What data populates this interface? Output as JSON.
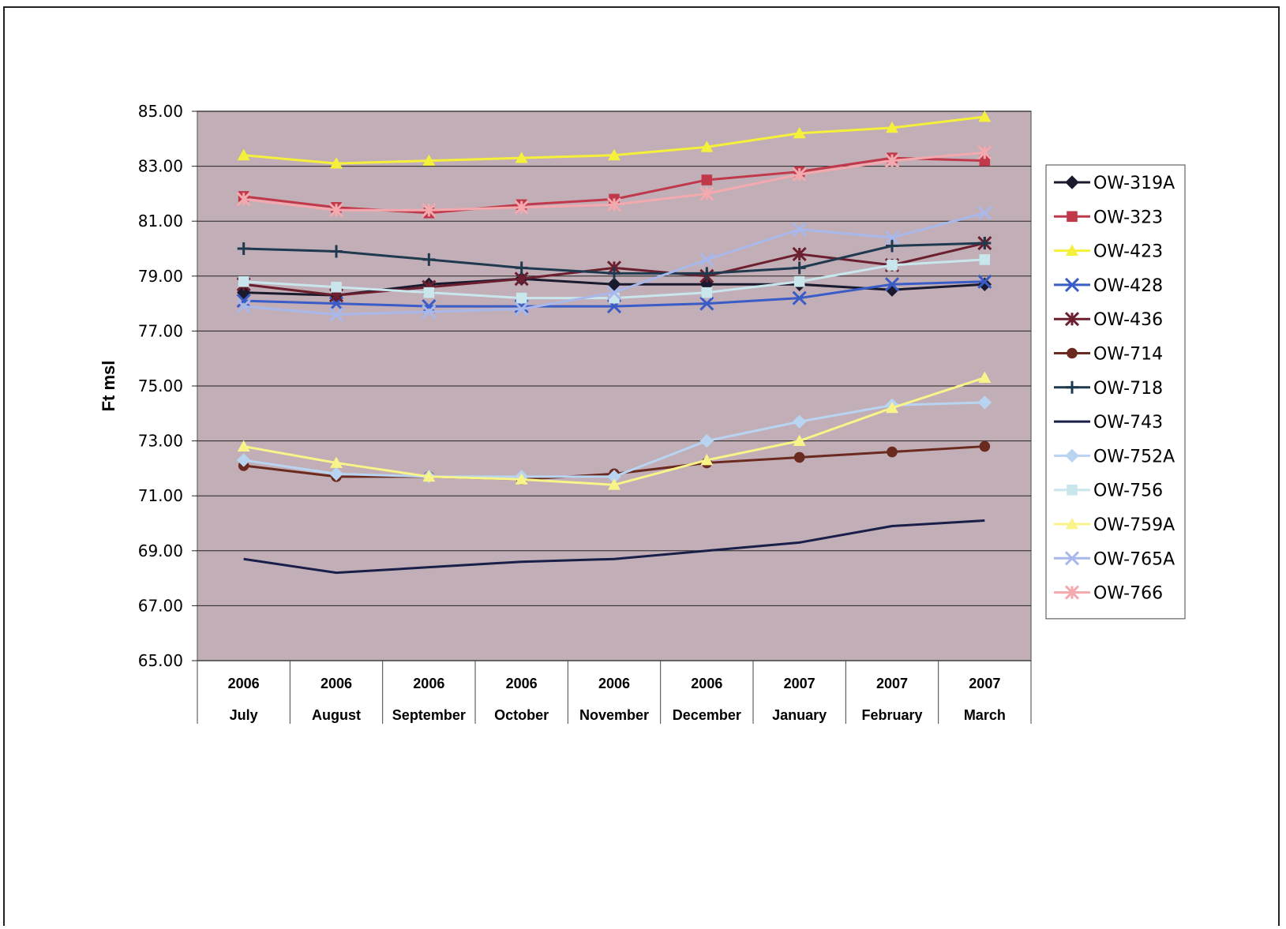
{
  "chart_data": {
    "type": "line",
    "ylabel": "Ft msl",
    "ylim": [
      65,
      85
    ],
    "yticks": [
      "65.00",
      "67.00",
      "69.00",
      "71.00",
      "73.00",
      "75.00",
      "77.00",
      "79.00",
      "81.00",
      "83.00",
      "85.00"
    ],
    "categories": [
      {
        "year": "2006",
        "month": "July"
      },
      {
        "year": "2006",
        "month": "August"
      },
      {
        "year": "2006",
        "month": "September"
      },
      {
        "year": "2006",
        "month": "October"
      },
      {
        "year": "2006",
        "month": "November"
      },
      {
        "year": "2006",
        "month": "December"
      },
      {
        "year": "2007",
        "month": "January"
      },
      {
        "year": "2007",
        "month": "February"
      },
      {
        "year": "2007",
        "month": "March"
      }
    ],
    "plot_background": "#c2aeb6",
    "grid": true,
    "legend_position": "right",
    "series": [
      {
        "name": "OW-319A",
        "color": "#1a1a2e",
        "marker": "diamond",
        "values": [
          78.4,
          78.3,
          78.7,
          78.9,
          78.7,
          78.7,
          78.7,
          78.5,
          78.7
        ]
      },
      {
        "name": "OW-323",
        "color": "#c0394b",
        "marker": "square",
        "values": [
          81.9,
          81.5,
          81.3,
          81.6,
          81.8,
          82.5,
          82.8,
          83.3,
          83.2
        ]
      },
      {
        "name": "OW-423",
        "color": "#f5f03a",
        "marker": "triangle",
        "values": [
          83.4,
          83.1,
          83.2,
          83.3,
          83.4,
          83.7,
          84.2,
          84.4,
          84.8
        ]
      },
      {
        "name": "OW-428",
        "color": "#3a5cc7",
        "marker": "x",
        "values": [
          78.1,
          78.0,
          77.9,
          77.9,
          77.9,
          78.0,
          78.2,
          78.7,
          78.8
        ]
      },
      {
        "name": "OW-436",
        "color": "#6b1f2e",
        "marker": "star",
        "values": [
          78.7,
          78.3,
          78.6,
          78.9,
          79.3,
          79.0,
          79.8,
          79.4,
          80.2
        ]
      },
      {
        "name": "OW-714",
        "color": "#6b2a1f",
        "marker": "circle",
        "values": [
          72.1,
          71.7,
          71.7,
          71.6,
          71.8,
          72.2,
          72.4,
          72.6,
          72.8
        ]
      },
      {
        "name": "OW-718",
        "color": "#1f3a4f",
        "marker": "plus",
        "values": [
          80.0,
          79.9,
          79.6,
          79.3,
          79.1,
          79.1,
          79.3,
          80.1,
          80.2
        ]
      },
      {
        "name": "OW-743",
        "color": "#1a1f4a",
        "marker": "none",
        "values": [
          68.7,
          68.2,
          68.4,
          68.6,
          68.7,
          69.0,
          69.3,
          69.9,
          70.1
        ]
      },
      {
        "name": "OW-752A",
        "color": "#b8d4f0",
        "marker": "diamond",
        "values": [
          72.3,
          71.8,
          71.7,
          71.7,
          71.7,
          73.0,
          73.7,
          74.3,
          74.4
        ]
      },
      {
        "name": "OW-756",
        "color": "#c8e6ec",
        "marker": "square",
        "values": [
          78.8,
          78.6,
          78.4,
          78.2,
          78.2,
          78.4,
          78.8,
          79.4,
          79.6
        ]
      },
      {
        "name": "OW-759A",
        "color": "#f8f48a",
        "marker": "triangle",
        "values": [
          72.8,
          72.2,
          71.7,
          71.6,
          71.4,
          72.3,
          73.0,
          74.2,
          75.3
        ]
      },
      {
        "name": "OW-765A",
        "color": "#a9b8ea",
        "marker": "x",
        "values": [
          77.9,
          77.6,
          77.7,
          77.8,
          78.4,
          79.6,
          80.7,
          80.4,
          81.3
        ]
      },
      {
        "name": "OW-766",
        "color": "#f4a9ae",
        "marker": "star",
        "values": [
          81.8,
          81.4,
          81.4,
          81.5,
          81.6,
          82.0,
          82.7,
          83.2,
          83.5
        ]
      }
    ]
  }
}
